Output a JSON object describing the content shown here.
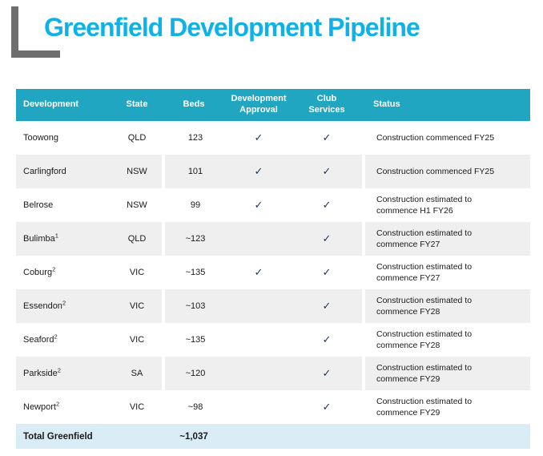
{
  "title": "Greenfield Development Pipeline",
  "colors": {
    "title_cyan": "#0FB2E8",
    "accent_mark_gray": "#6E6E6E",
    "header_teal": "#21A6C2",
    "alt_row_gray": "#EFEFEF",
    "total_row_blue": "#DAECF5",
    "body_text": "#1A1A1A",
    "check_navy": "#1F3352"
  },
  "table": {
    "check_glyph": "✓",
    "headers": [
      {
        "id": "development",
        "label": "Development"
      },
      {
        "id": "state",
        "label": "State"
      },
      {
        "id": "beds",
        "label": "Beds"
      },
      {
        "id": "development-approval",
        "label": "Development\nApproval"
      },
      {
        "id": "club-services",
        "label": "Club\nServices"
      },
      {
        "id": "status",
        "label": "Status"
      }
    ],
    "rows": [
      {
        "name": "Toowong",
        "footnote": "",
        "state": "QLD",
        "beds": "123",
        "development_approval": true,
        "club_services": true,
        "status": "Construction commenced FY25"
      },
      {
        "name": "Carlingford",
        "footnote": "",
        "state": "NSW",
        "beds": "101",
        "development_approval": true,
        "club_services": true,
        "status": "Construction commenced FY25"
      },
      {
        "name": "Belrose",
        "footnote": "",
        "state": "NSW",
        "beds": "99",
        "development_approval": true,
        "club_services": true,
        "status": "Construction estimated to\ncommence H1 FY26"
      },
      {
        "name": "Bulimba",
        "footnote": "1",
        "state": "QLD",
        "beds": "~123",
        "development_approval": false,
        "club_services": true,
        "status": "Construction estimated to\ncommence FY27"
      },
      {
        "name": "Coburg",
        "footnote": "2",
        "state": "VIC",
        "beds": "~135",
        "development_approval": true,
        "club_services": true,
        "status": "Construction estimated to\ncommence FY27"
      },
      {
        "name": "Essendon",
        "footnote": "2",
        "state": "VIC",
        "beds": "~103",
        "development_approval": false,
        "club_services": true,
        "status": "Construction estimated to\ncommence FY28"
      },
      {
        "name": "Seaford",
        "footnote": "2",
        "state": "VIC",
        "beds": "~135",
        "development_approval": false,
        "club_services": true,
        "status": "Construction estimated to\ncommence FY28"
      },
      {
        "name": "Parkside",
        "footnote": "2",
        "state": "SA",
        "beds": "~120",
        "development_approval": false,
        "club_services": true,
        "status": "Construction estimated to\ncommence FY29"
      },
      {
        "name": "Newport",
        "footnote": "2",
        "state": "VIC",
        "beds": "~98",
        "development_approval": false,
        "club_services": true,
        "status": "Construction estimated to\ncommence FY29"
      }
    ],
    "total": {
      "label": "Total Greenfield",
      "beds": "~1,037"
    }
  }
}
